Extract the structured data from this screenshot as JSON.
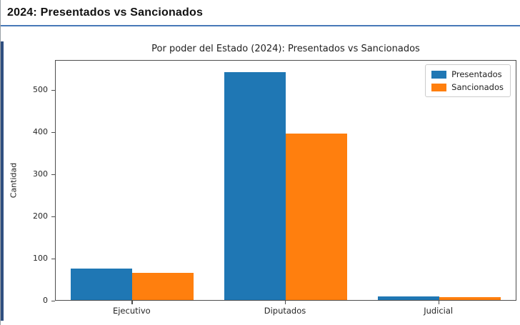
{
  "page": {
    "header_title": "2024: Presentados vs Sancionados",
    "underline_color": "#4779b8",
    "accent_color": "#2f4f7f"
  },
  "chart_data": {
    "type": "bar",
    "title": "Por poder del Estado (2024): Presentados vs Sancionados",
    "xlabel": "",
    "ylabel": "Cantidad",
    "categories": [
      "Ejecutivo",
      "Diputados",
      "Judicial"
    ],
    "series": [
      {
        "name": "Presentados",
        "color": "#1f77b4",
        "values": [
          75,
          540,
          8
        ]
      },
      {
        "name": "Sancionados",
        "color": "#ff7f0e",
        "values": [
          64,
          394,
          6
        ]
      }
    ],
    "yticks": [
      0,
      100,
      200,
      300,
      400,
      500
    ],
    "ylim": [
      0,
      567
    ],
    "grid": false,
    "legend_position": "upper right",
    "bar_group_width_fraction": 0.8
  }
}
